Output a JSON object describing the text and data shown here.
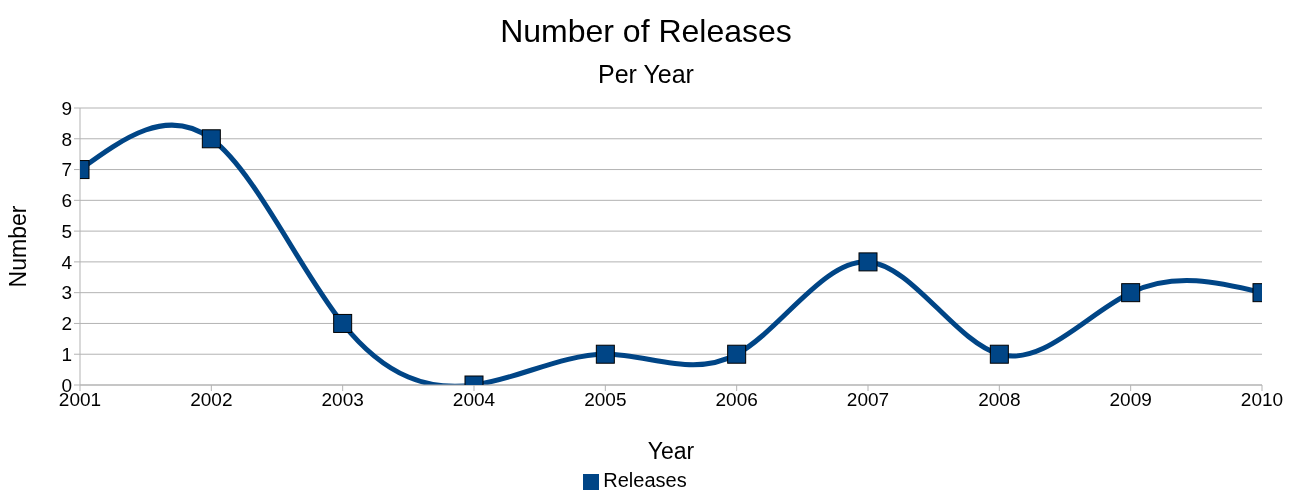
{
  "chart_data": {
    "type": "line",
    "title": "Number of Releases",
    "subtitle": "Per Year",
    "xlabel": "Year",
    "ylabel": "Number",
    "x": [
      2001,
      2002,
      2003,
      2004,
      2005,
      2006,
      2007,
      2008,
      2009,
      2010
    ],
    "xlim": [
      2001,
      2010
    ],
    "xticks": [
      2001,
      2002,
      2003,
      2004,
      2005,
      2006,
      2007,
      2008,
      2009,
      2010
    ],
    "ylim": [
      0,
      9
    ],
    "yticks": [
      0,
      1,
      2,
      3,
      4,
      5,
      6,
      7,
      8,
      9
    ],
    "series": [
      {
        "name": "Releases",
        "color": "#004586",
        "values": [
          7,
          8,
          2,
          0,
          1,
          1,
          4,
          1,
          3,
          3
        ]
      }
    ],
    "grid": "y",
    "legend": "bottom",
    "marker": "square",
    "line_style": "solid"
  }
}
